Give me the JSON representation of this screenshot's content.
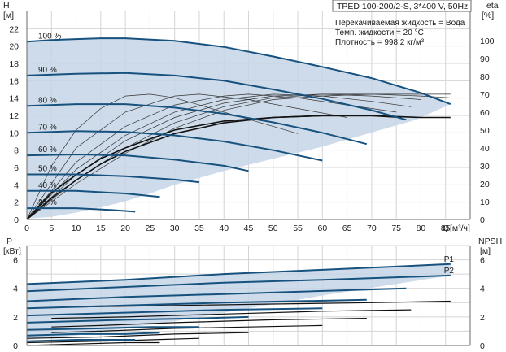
{
  "info": {
    "title": "TPED 100-200/2-S, 3*400 V, 50Hz",
    "lines": [
      "Перекачиваемая жидкость = Вода",
      "Темп. жидкости = 20 °C",
      "Плотность = 998.2 кг/м³"
    ]
  },
  "colors": {
    "curve": "#17527f",
    "region": "#c5d5e6",
    "grid": "#d4d4d4"
  },
  "chart_data": [
    {
      "type": "line",
      "name": "head",
      "y_left": {
        "label": "H",
        "unit": "[м]",
        "ticks": [
          0,
          2,
          4,
          6,
          8,
          10,
          12,
          14,
          16,
          18,
          20,
          22
        ],
        "range": [
          0,
          24
        ]
      },
      "y_right": {
        "label": "eta",
        "unit": "[%]",
        "ticks": [
          0,
          10,
          20,
          30,
          40,
          50,
          60,
          70,
          80,
          90,
          100
        ]
      },
      "x": {
        "label": "Q",
        "unit": "[м³/ч]",
        "ticks": [
          0,
          5,
          10,
          15,
          20,
          25,
          30,
          35,
          40,
          45,
          50,
          55,
          60,
          65,
          70,
          75,
          80,
          85
        ],
        "range": [
          0,
          90
        ]
      },
      "grid": true,
      "region": [
        [
          0,
          20.5
        ],
        [
          5,
          20.7
        ],
        [
          10,
          20.8
        ],
        [
          15,
          20.9
        ],
        [
          20,
          20.9
        ],
        [
          30,
          20.6
        ],
        [
          40,
          19.9
        ],
        [
          50,
          18.8
        ],
        [
          60,
          17.6
        ],
        [
          70,
          16.3
        ],
        [
          80,
          14.6
        ],
        [
          86,
          13.3
        ],
        [
          79,
          11.5
        ],
        [
          60,
          8.4
        ],
        [
          45,
          6.3
        ],
        [
          40,
          5.6
        ],
        [
          35,
          4.8
        ],
        [
          30,
          4.0
        ],
        [
          25,
          3.0
        ],
        [
          20,
          2.1
        ],
        [
          15,
          1.4
        ],
        [
          10,
          0.8
        ],
        [
          5,
          0.3
        ],
        [
          0,
          0.1
        ]
      ],
      "series": [
        {
          "label": "100 %",
          "points": [
            [
              0,
              20.5
            ],
            [
              5,
              20.7
            ],
            [
              10,
              20.8
            ],
            [
              15,
              20.9
            ],
            [
              20,
              20.9
            ],
            [
              30,
              20.6
            ],
            [
              40,
              19.9
            ],
            [
              50,
              18.8
            ],
            [
              60,
              17.6
            ],
            [
              70,
              16.3
            ],
            [
              80,
              14.6
            ],
            [
              86,
              13.3
            ]
          ]
        },
        {
          "label": "90 %",
          "points": [
            [
              0,
              16.6
            ],
            [
              10,
              16.8
            ],
            [
              20,
              16.9
            ],
            [
              30,
              16.6
            ],
            [
              40,
              16.0
            ],
            [
              50,
              15.0
            ],
            [
              60,
              13.9
            ],
            [
              70,
              12.6
            ],
            [
              77,
              11.5
            ]
          ]
        },
        {
          "label": "80 %",
          "points": [
            [
              0,
              13.1
            ],
            [
              10,
              13.3
            ],
            [
              20,
              13.3
            ],
            [
              30,
              12.9
            ],
            [
              40,
              12.2
            ],
            [
              50,
              11.2
            ],
            [
              60,
              10.0
            ],
            [
              69,
              8.7
            ]
          ]
        },
        {
          "label": "70 %",
          "points": [
            [
              0,
              10.0
            ],
            [
              10,
              10.2
            ],
            [
              20,
              10.1
            ],
            [
              30,
              9.7
            ],
            [
              40,
              9.0
            ],
            [
              50,
              8.0
            ],
            [
              60,
              6.8
            ]
          ]
        },
        {
          "label": "60 %",
          "points": [
            [
              0,
              7.4
            ],
            [
              10,
              7.5
            ],
            [
              20,
              7.4
            ],
            [
              30,
              6.9
            ],
            [
              40,
              6.2
            ],
            [
              45,
              5.6
            ]
          ]
        },
        {
          "label": "50 %",
          "points": [
            [
              0,
              5.2
            ],
            [
              10,
              5.2
            ],
            [
              20,
              5.0
            ],
            [
              30,
              4.6
            ],
            [
              35,
              4.3
            ]
          ]
        },
        {
          "label": "40 %",
          "points": [
            [
              0,
              3.3
            ],
            [
              10,
              3.3
            ],
            [
              20,
              3.0
            ],
            [
              27,
              2.6
            ]
          ]
        },
        {
          "label": "25 %",
          "points": [
            [
              0,
              1.3
            ],
            [
              10,
              1.3
            ],
            [
              17,
              1.1
            ],
            [
              22,
              0.9
            ]
          ]
        }
      ],
      "efficiency_curves": [
        [
          [
            0,
            0
          ],
          [
            5,
            30
          ],
          [
            10,
            50
          ],
          [
            15,
            62
          ],
          [
            20,
            69
          ],
          [
            25,
            70
          ],
          [
            30,
            68
          ],
          [
            35,
            64
          ],
          [
            45,
            56
          ],
          [
            55,
            48
          ]
        ],
        [
          [
            0,
            0
          ],
          [
            10,
            40
          ],
          [
            20,
            60
          ],
          [
            30,
            69
          ],
          [
            35,
            70
          ],
          [
            45,
            67
          ],
          [
            55,
            62
          ],
          [
            65,
            57
          ]
        ],
        [
          [
            0,
            0
          ],
          [
            10,
            32
          ],
          [
            20,
            52
          ],
          [
            30,
            64
          ],
          [
            40,
            69
          ],
          [
            45,
            70
          ],
          [
            55,
            68
          ],
          [
            65,
            64
          ],
          [
            75,
            60
          ]
        ],
        [
          [
            0,
            0
          ],
          [
            10,
            28
          ],
          [
            20,
            47
          ],
          [
            30,
            60
          ],
          [
            40,
            67
          ],
          [
            50,
            70
          ],
          [
            60,
            69
          ],
          [
            70,
            66
          ],
          [
            78,
            63
          ]
        ],
        [
          [
            0,
            0
          ],
          [
            10,
            25
          ],
          [
            20,
            44
          ],
          [
            30,
            57
          ],
          [
            40,
            65
          ],
          [
            50,
            69
          ],
          [
            60,
            70
          ],
          [
            70,
            69
          ],
          [
            80,
            67
          ]
        ],
        [
          [
            0,
            0
          ],
          [
            10,
            22
          ],
          [
            20,
            40
          ],
          [
            30,
            54
          ],
          [
            40,
            63
          ],
          [
            50,
            68
          ],
          [
            60,
            70
          ],
          [
            70,
            70
          ],
          [
            80,
            69
          ],
          [
            86,
            68
          ]
        ],
        [
          [
            0,
            0
          ],
          [
            10,
            20
          ],
          [
            20,
            37
          ],
          [
            30,
            51
          ],
          [
            40,
            61
          ],
          [
            50,
            67
          ],
          [
            60,
            69
          ],
          [
            70,
            70
          ],
          [
            80,
            70
          ],
          [
            86,
            70
          ]
        ]
      ],
      "efficiency_bold": [
        [
          [
            0,
            0
          ],
          [
            5,
            15
          ],
          [
            10,
            25
          ],
          [
            15,
            34
          ],
          [
            20,
            40
          ],
          [
            30,
            50
          ],
          [
            40,
            55
          ],
          [
            50,
            57
          ],
          [
            60,
            58
          ],
          [
            70,
            58
          ],
          [
            80,
            57
          ],
          [
            86,
            57
          ]
        ],
        [
          [
            0,
            0
          ],
          [
            5,
            12
          ],
          [
            10,
            22
          ],
          [
            15,
            31
          ],
          [
            20,
            38
          ],
          [
            30,
            48
          ],
          [
            40,
            54
          ],
          [
            50,
            57
          ],
          [
            60,
            58
          ],
          [
            70,
            58
          ],
          [
            76,
            57
          ]
        ]
      ]
    },
    {
      "type": "line",
      "name": "power",
      "y_left": {
        "label": "P",
        "unit": "[кВт]",
        "ticks": [
          0,
          2,
          4,
          6
        ],
        "range": [
          0,
          7
        ]
      },
      "y_right": {
        "label": "NPSH",
        "unit": "[м]",
        "ticks": [
          0,
          2,
          4,
          6
        ],
        "range": [
          0,
          7
        ]
      },
      "x": {
        "range": [
          0,
          90
        ]
      },
      "grid": true,
      "region": [
        [
          0,
          4.3
        ],
        [
          20,
          4.6
        ],
        [
          40,
          5.0
        ],
        [
          60,
          5.3
        ],
        [
          86,
          5.7
        ],
        [
          86,
          4.9
        ],
        [
          60,
          3.5
        ],
        [
          45,
          2.6
        ],
        [
          30,
          1.7
        ],
        [
          20,
          1.2
        ],
        [
          10,
          0.7
        ],
        [
          0,
          0.4
        ]
      ],
      "series": [
        {
          "label": "P1",
          "points": [
            [
              0,
              4.3
            ],
            [
              20,
              4.6
            ],
            [
              40,
              5.0
            ],
            [
              60,
              5.3
            ],
            [
              86,
              5.7
            ]
          ]
        },
        {
          "label": "P2",
          "points": [
            [
              0,
              3.8
            ],
            [
              20,
              4.1
            ],
            [
              40,
              4.4
            ],
            [
              60,
              4.6
            ],
            [
              86,
              4.9
            ]
          ]
        },
        {
          "label": "",
          "points": [
            [
              0,
              3.1
            ],
            [
              20,
              3.4
            ],
            [
              40,
              3.6
            ],
            [
              77,
              4.0
            ]
          ]
        },
        {
          "label": "",
          "points": [
            [
              0,
              2.6
            ],
            [
              20,
              2.8
            ],
            [
              40,
              3.0
            ],
            [
              69,
              3.2
            ]
          ]
        },
        {
          "label": "",
          "points": [
            [
              0,
              2.1
            ],
            [
              20,
              2.3
            ],
            [
              40,
              2.5
            ],
            [
              60,
              2.6
            ]
          ]
        },
        {
          "label": "",
          "points": [
            [
              0,
              1.6
            ],
            [
              20,
              1.8
            ],
            [
              35,
              1.9
            ],
            [
              45,
              2.0
            ]
          ]
        },
        {
          "label": "",
          "points": [
            [
              0,
              1.1
            ],
            [
              15,
              1.2
            ],
            [
              25,
              1.3
            ],
            [
              35,
              1.3
            ]
          ]
        },
        {
          "label": "",
          "points": [
            [
              0,
              0.7
            ],
            [
              10,
              0.8
            ],
            [
              20,
              0.8
            ],
            [
              27,
              0.9
            ]
          ]
        },
        {
          "label": "",
          "points": [
            [
              0,
              0.3
            ],
            [
              10,
              0.4
            ],
            [
              22,
              0.4
            ]
          ]
        }
      ],
      "npsh_curves": [
        [
          [
            10,
            2.7
          ],
          [
            30,
            2.8
          ],
          [
            50,
            2.9
          ],
          [
            70,
            3.0
          ],
          [
            86,
            3.1
          ]
        ],
        [
          [
            5,
            1.9
          ],
          [
            20,
            2.0
          ],
          [
            40,
            2.2
          ],
          [
            60,
            2.4
          ],
          [
            78,
            2.5
          ]
        ],
        [
          [
            5,
            1.3
          ],
          [
            15,
            1.4
          ],
          [
            30,
            1.6
          ],
          [
            50,
            1.8
          ],
          [
            69,
            1.9
          ]
        ],
        [
          [
            5,
            0.9
          ],
          [
            15,
            1.0
          ],
          [
            30,
            1.2
          ],
          [
            45,
            1.3
          ],
          [
            60,
            1.4
          ]
        ],
        [
          [
            0,
            0.5
          ],
          [
            15,
            0.6
          ],
          [
            30,
            0.8
          ],
          [
            45,
            0.9
          ]
        ],
        [
          [
            0,
            0.2
          ],
          [
            15,
            0.3
          ],
          [
            25,
            0.4
          ],
          [
            35,
            0.5
          ]
        ],
        [
          [
            0,
            0.0
          ],
          [
            10,
            0.1
          ],
          [
            20,
            0.2
          ],
          [
            27,
            0.2
          ]
        ]
      ]
    }
  ]
}
